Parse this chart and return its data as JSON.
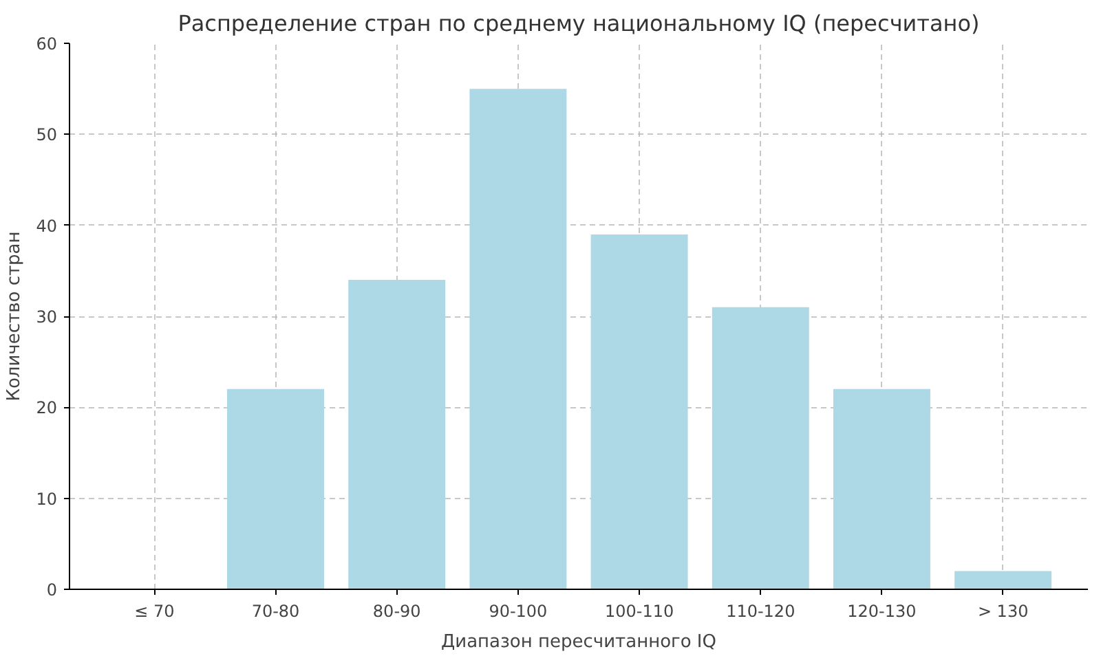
{
  "chart_data": {
    "type": "bar",
    "title": "Распределение стран по среднему национальному IQ (пересчитано)",
    "xlabel": "Диапазон пересчитанного IQ",
    "ylabel": "Количество стран",
    "categories": [
      "≤ 70",
      "70-80",
      "80-90",
      "90-100",
      "100-110",
      "110-120",
      "120-130",
      "> 130"
    ],
    "values": [
      0,
      22,
      34,
      55,
      39,
      31,
      22,
      2
    ],
    "color": "#add8e6",
    "ylim": [
      0,
      60
    ],
    "yticks": [
      0,
      10,
      20,
      30,
      40,
      50,
      60
    ],
    "grid": true
  }
}
